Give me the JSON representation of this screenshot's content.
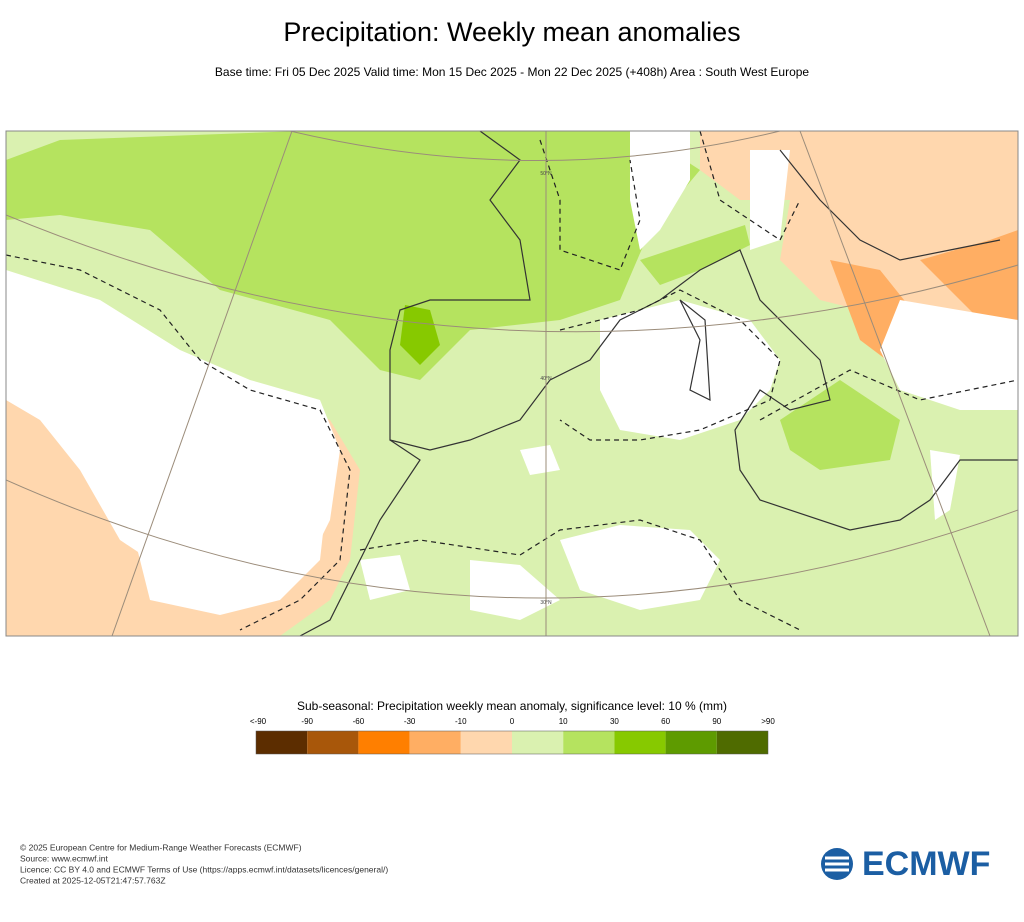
{
  "header": {
    "title": "Precipitation: Weekly mean anomalies",
    "subtitle": "Base time: Fri 05 Dec 2025 Valid time: Mon 15 Dec 2025 - Mon 22 Dec 2025 (+408h) Area : South West Europe"
  },
  "map": {
    "latitude_labels": [
      "50°N",
      "40°N",
      "30°N"
    ]
  },
  "legend": {
    "title": "Sub-seasonal: Precipitation weekly mean anomaly, significance level: 10 % (mm)",
    "labels": [
      "<-90",
      "-90",
      "-60",
      "-30",
      "-10",
      "0",
      "10",
      "30",
      "60",
      "90",
      ">90"
    ],
    "colors": [
      "#5c2d00",
      "#a8570a",
      "#ff7f00",
      "#ffae63",
      "#ffd7ae",
      "#daf1b0",
      "#b5e35f",
      "#87c900",
      "#5e9b00",
      "#4f6b00"
    ]
  },
  "footer": {
    "lines": [
      "© 2025 European Centre for Medium-Range Weather Forecasts (ECMWF)",
      "Source: www.ecmwf.int",
      "Licence: CC BY 4.0 and ECMWF Terms of Use (https://apps.ecmwf.int/datasets/licences/general/)",
      "Created at 2025-12-05T21:47:57.763Z"
    ],
    "logo": "ECMWF"
  }
}
